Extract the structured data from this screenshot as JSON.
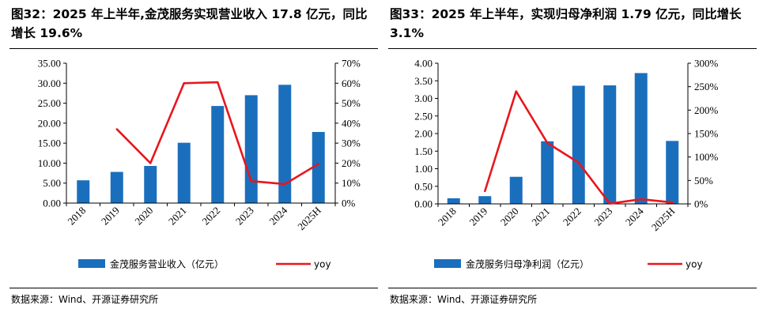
{
  "charts": [
    {
      "id": "left",
      "title": "图32：2025 年上半年,金茂服务实现营业收入 17.8 亿元，同比增长 19.6%",
      "source": "数据来源：Wind、开源证券研究所",
      "chart_data": {
        "type": "bar",
        "categories": [
          "2018",
          "2019",
          "2020",
          "2021",
          "2022",
          "2023",
          "2024",
          "2025H"
        ],
        "series": [
          {
            "name": "金茂服务营业收入（亿元）",
            "type": "bar",
            "axis": "left",
            "color": "#1a6fbd",
            "values": [
              5.7,
              7.8,
              9.3,
              15.1,
              24.3,
              27.0,
              29.6,
              17.8
            ]
          },
          {
            "name": "yoy",
            "type": "line",
            "axis": "right",
            "color": "#e8161d",
            "values": [
              null,
              37,
              20,
              60,
              60.5,
              11,
              9.5,
              19.6
            ]
          }
        ],
        "left_axis": {
          "min": 0,
          "max": 35,
          "step": 5,
          "ticks": [
            "0.00",
            "5.00",
            "10.00",
            "15.00",
            "20.00",
            "25.00",
            "30.00",
            "35.00"
          ]
        },
        "right_axis": {
          "min": 0,
          "max": 70,
          "step": 10,
          "ticks": [
            "0%",
            "10%",
            "20%",
            "30%",
            "40%",
            "50%",
            "60%",
            "70%"
          ]
        },
        "legend": [
          "金茂服务营业收入（亿元）",
          "yoy"
        ],
        "legend_position": "bottom",
        "grid": false
      }
    },
    {
      "id": "right",
      "title": "图33：2025 年上半年，实现归母净利润 1.79 亿元，同比增长 3.1%",
      "source": "数据来源：Wind、开源证券研究所",
      "chart_data": {
        "type": "bar",
        "categories": [
          "2018",
          "2019",
          "2020",
          "2021",
          "2022",
          "2023",
          "2024",
          "2025H"
        ],
        "series": [
          {
            "name": "金茂服务归母净利润（亿元）",
            "type": "bar",
            "axis": "left",
            "color": "#1a6fbd",
            "values": [
              0.16,
              0.22,
              0.77,
              1.78,
              3.36,
              3.37,
              3.72,
              1.79
            ]
          },
          {
            "name": "yoy",
            "type": "line",
            "axis": "right",
            "color": "#e8161d",
            "values": [
              null,
              27,
              240,
              130,
              88,
              0.5,
              10,
              3.1
            ]
          }
        ],
        "left_axis": {
          "min": 0,
          "max": 4,
          "step": 0.5,
          "ticks": [
            "0.00",
            "0.50",
            "1.00",
            "1.50",
            "2.00",
            "2.50",
            "3.00",
            "3.50",
            "4.00"
          ]
        },
        "right_axis": {
          "min": 0,
          "max": 300,
          "step": 50,
          "ticks": [
            "0%",
            "50%",
            "100%",
            "150%",
            "200%",
            "250%",
            "300%"
          ]
        },
        "legend": [
          "金茂服务归母净利润（亿元）",
          "yoy"
        ],
        "legend_position": "bottom",
        "grid": false
      }
    }
  ]
}
